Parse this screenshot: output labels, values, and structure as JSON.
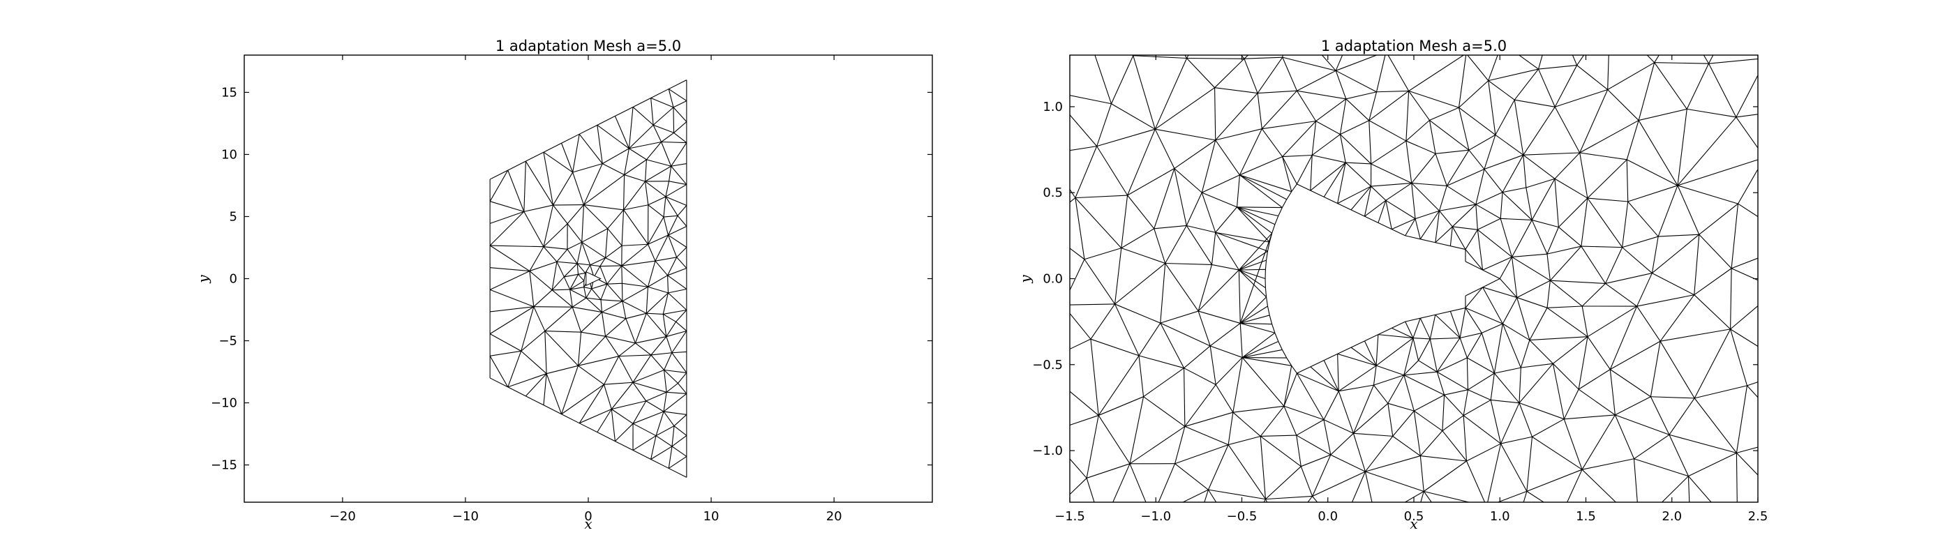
{
  "chart_data": [
    {
      "type": "mesh",
      "title": "1 adaptation Mesh a=5.0",
      "xlabel": "x",
      "ylabel": "y",
      "xlim": [
        -28,
        28
      ],
      "ylim": [
        -18,
        18
      ],
      "xticks": [
        -20,
        -10,
        0,
        10,
        20
      ],
      "xtick_labels": [
        "−20",
        "−10",
        "0",
        "10",
        "20"
      ],
      "yticks": [
        -15,
        -10,
        -5,
        0,
        5,
        10,
        15
      ],
      "ytick_labels": [
        "−15",
        "−10",
        "−5",
        "0",
        "5",
        "10",
        "15"
      ],
      "domain_outline": [
        [
          -8,
          8
        ],
        [
          8,
          16
        ],
        [
          8,
          -16
        ],
        [
          -8,
          -8
        ]
      ],
      "refinement_center": [
        0,
        0
      ],
      "grid": false
    },
    {
      "type": "mesh",
      "title": "1 adaptation Mesh a=5.0",
      "xlabel": "x",
      "ylabel": "y",
      "xlim": [
        -1.5,
        2.5
      ],
      "ylim": [
        -1.3,
        1.3
      ],
      "xticks": [
        -1.5,
        -1.0,
        -0.5,
        0.0,
        0.5,
        1.0,
        1.5,
        2.0,
        2.5
      ],
      "xtick_labels": [
        "−1.5",
        "−1.0",
        "−0.5",
        "0.0",
        "0.5",
        "1.0",
        "1.5",
        "2.0",
        "2.5"
      ],
      "yticks": [
        -1.0,
        -0.5,
        0.0,
        0.5,
        1.0
      ],
      "ytick_labels": [
        "−1.0",
        "−0.5",
        "0.0",
        "0.5",
        "1.0"
      ],
      "obstacle_outline": [
        [
          -0.18,
          0.55
        ],
        [
          0.45,
          0.25
        ],
        [
          0.8,
          0.17
        ],
        [
          0.8,
          0.1
        ],
        [
          1.0,
          0.0
        ],
        [
          0.8,
          -0.1
        ],
        [
          0.8,
          -0.17
        ],
        [
          0.45,
          -0.25
        ],
        [
          -0.18,
          -0.55
        ]
      ],
      "grid": false
    }
  ]
}
